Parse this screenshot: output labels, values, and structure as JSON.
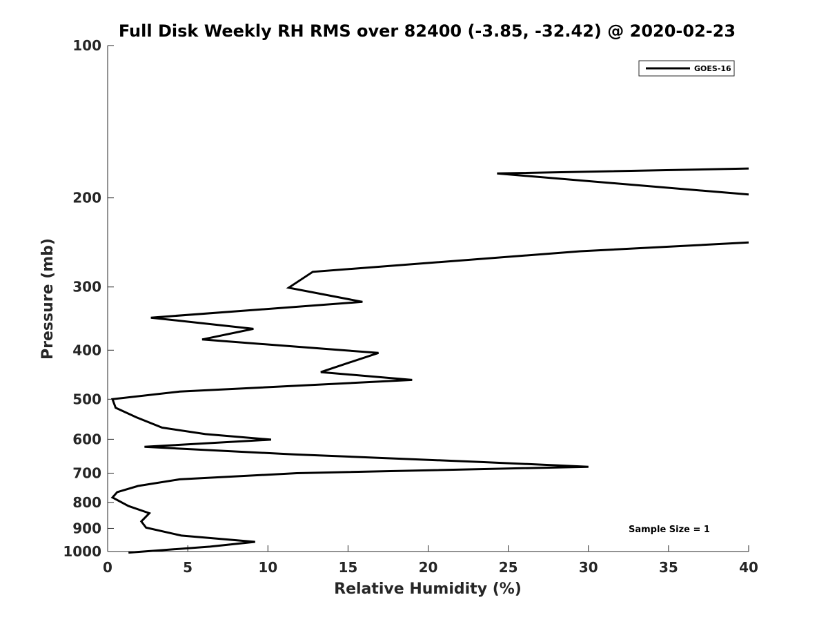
{
  "chart_data": {
    "type": "line",
    "title": "Full Disk Weekly RH RMS over 82400 (-3.85, -32.42) @ 2020-02-23",
    "xlabel": "Relative Humidity (%)",
    "ylabel": "Pressure (mb)",
    "xlim": [
      0,
      40
    ],
    "ylim": [
      100,
      1000
    ],
    "y_scale": "log",
    "y_reversed": true,
    "x_ticks": [
      "0",
      "5",
      "10",
      "15",
      "20",
      "25",
      "30",
      "35",
      "40"
    ],
    "y_ticks": [
      "100",
      "200",
      "300",
      "400",
      "500",
      "600",
      "700",
      "800",
      "900",
      "1000"
    ],
    "grid": false,
    "legend_position": "top-right",
    "annotation": "Sample Size = 1",
    "series": [
      {
        "name": "GOES-16",
        "color": "#000000",
        "x": [
          40,
          24.3,
          40,
          null,
          40,
          29.5,
          12.8,
          11.3,
          15.9,
          2.7,
          9.1,
          5.9,
          16.9,
          15.1,
          13.3,
          19.0,
          4.5,
          0.3,
          0.5,
          1.8,
          3.4,
          6.1,
          10.2,
          2.3,
          11.7,
          23.1,
          30.0,
          11.8,
          4.5,
          1.9,
          0.6,
          0.3,
          1.3,
          2.6,
          2.1,
          2.4,
          4.6,
          9.2,
          6.4,
          1.3
        ],
        "y": [
          175,
          179,
          197,
          null,
          245,
          255,
          280,
          301,
          321,
          345,
          363,
          381,
          405,
          423,
          442,
          458,
          483,
          500,
          520,
          543,
          569,
          586,
          601,
          621,
          643,
          665,
          680,
          700,
          720,
          742,
          763,
          782,
          813,
          840,
          872,
          897,
          930,
          957,
          978,
          1005
        ]
      }
    ]
  }
}
